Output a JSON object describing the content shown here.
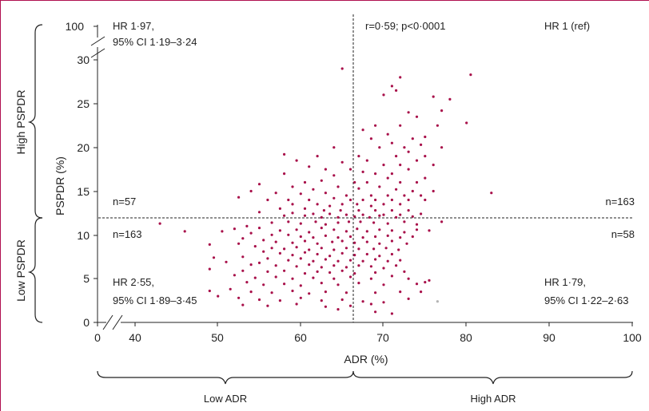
{
  "chart_data": {
    "type": "scatter",
    "xlabel": "ADR (%)",
    "ylabel": "PSPDR (%)",
    "x_ticks": [
      "0",
      "40",
      "50",
      "60",
      "70",
      "80",
      "90",
      "100"
    ],
    "y_ticks": [
      "0",
      "5",
      "10",
      "15",
      "20",
      "25",
      "30",
      "100"
    ],
    "xlim": [
      35,
      100
    ],
    "ylim": [
      0,
      32
    ],
    "axis_breaks": {
      "x": "0 to 35",
      "y": "32 to 100"
    },
    "thresholds": {
      "adr": 66.3,
      "pspdr": 11.8
    },
    "grid": false,
    "legend": "none",
    "colors": {
      "points": "#a8104a",
      "outlier_point": "#b4b4b4",
      "frame": "#b01050"
    },
    "annotations": {
      "correlation": "r=0·59; p<0·0001",
      "top_left_hr": "HR 1·97,",
      "top_left_ci": "95% CI 1·19–3·24",
      "top_right_hr": "HR 1 (ref)",
      "bottom_left_hr": "HR 2·55,",
      "bottom_left_ci": "95% CI 1·89–3·45",
      "bottom_right_hr": "HR 1·79,",
      "bottom_right_ci": "95% CI 1·22–2·63",
      "n_top_left": "n=57",
      "n_bottom_left": "n=163",
      "n_top_right": "n=163",
      "n_bottom_right": "n=58"
    },
    "group_labels": {
      "high_pspdr": "High PSPDR",
      "low_pspdr": "Low PSPDR",
      "low_adr": "Low ADR",
      "high_adr": "High ADR"
    },
    "points": [
      [
        65,
        29
      ],
      [
        72,
        28
      ],
      [
        80.5,
        28.3
      ],
      [
        71,
        27
      ],
      [
        71.5,
        26.5
      ],
      [
        70,
        26
      ],
      [
        76,
        25.8
      ],
      [
        78,
        25.5
      ],
      [
        73,
        24
      ],
      [
        77,
        24.2
      ],
      [
        74,
        23.5
      ],
      [
        69,
        22.5
      ],
      [
        72,
        22.5
      ],
      [
        76.5,
        22.5
      ],
      [
        80,
        22.8
      ],
      [
        67.5,
        22
      ],
      [
        70.5,
        21.5
      ],
      [
        73.5,
        21
      ],
      [
        75,
        21.2
      ],
      [
        68.5,
        21
      ],
      [
        71,
        20.5
      ],
      [
        74.5,
        20.3
      ],
      [
        77,
        20
      ],
      [
        64,
        20
      ],
      [
        72.5,
        20
      ],
      [
        69.5,
        20
      ],
      [
        58,
        19.2
      ],
      [
        62,
        19
      ],
      [
        67,
        19
      ],
      [
        71.5,
        19
      ],
      [
        73,
        19.5
      ],
      [
        75,
        19
      ],
      [
        59.5,
        18.5
      ],
      [
        65,
        18.3
      ],
      [
        68,
        18.5
      ],
      [
        70,
        18
      ],
      [
        72,
        18
      ],
      [
        74,
        18.5
      ],
      [
        76,
        18
      ],
      [
        61,
        17.8
      ],
      [
        63,
        17.5
      ],
      [
        66,
        17.5
      ],
      [
        67.5,
        17.2
      ],
      [
        69,
        17
      ],
      [
        71,
        17
      ],
      [
        73,
        17.5
      ],
      [
        58,
        17
      ],
      [
        64,
        16.8
      ],
      [
        70.5,
        16.5
      ],
      [
        75,
        16.5
      ],
      [
        60.5,
        16
      ],
      [
        62.5,
        16.2
      ],
      [
        66.5,
        16
      ],
      [
        68,
        16
      ],
      [
        72,
        16
      ],
      [
        74,
        16
      ],
      [
        55,
        15.8
      ],
      [
        59,
        15.5
      ],
      [
        61.5,
        15.2
      ],
      [
        64.5,
        15.5
      ],
      [
        67,
        15.3
      ],
      [
        69.5,
        15.5
      ],
      [
        71.5,
        15.2
      ],
      [
        73.5,
        15
      ],
      [
        76,
        15
      ],
      [
        83,
        14.8
      ],
      [
        54,
        15
      ],
      [
        57,
        14.8
      ],
      [
        60,
        14.7
      ],
      [
        63,
        14.8
      ],
      [
        65.5,
        14.5
      ],
      [
        68.5,
        14.5
      ],
      [
        70.5,
        14.5
      ],
      [
        72.5,
        14.5
      ],
      [
        74.5,
        14.5
      ],
      [
        52.5,
        14.3
      ],
      [
        56,
        14
      ],
      [
        58.5,
        14
      ],
      [
        61,
        14
      ],
      [
        64,
        14.2
      ],
      [
        66,
        14
      ],
      [
        67.5,
        14
      ],
      [
        69,
        14
      ],
      [
        71,
        14
      ],
      [
        73,
        14
      ],
      [
        75,
        14
      ],
      [
        59,
        13.5
      ],
      [
        62,
        13.5
      ],
      [
        63.5,
        13.3
      ],
      [
        65,
        13.5
      ],
      [
        66.8,
        13.5
      ],
      [
        68.5,
        13.3
      ],
      [
        70,
        13.5
      ],
      [
        72,
        13.5
      ],
      [
        57.5,
        13
      ],
      [
        60.5,
        13
      ],
      [
        62.8,
        12.8
      ],
      [
        64.8,
        12.8
      ],
      [
        67,
        12.8
      ],
      [
        69,
        12.8
      ],
      [
        71,
        12.8
      ],
      [
        73,
        12.8
      ],
      [
        55,
        12.6
      ],
      [
        59,
        12.5
      ],
      [
        61.5,
        12.4
      ],
      [
        63.5,
        12.4
      ],
      [
        65.5,
        12.3
      ],
      [
        67.5,
        12.3
      ],
      [
        70,
        12.3
      ],
      [
        72,
        12.3
      ],
      [
        74.5,
        12.4
      ],
      [
        58,
        12.2
      ],
      [
        60.5,
        12.2
      ],
      [
        62.5,
        12
      ],
      [
        64.5,
        12
      ],
      [
        66.5,
        12.1
      ],
      [
        68.3,
        12
      ],
      [
        69.5,
        12.2
      ],
      [
        71.5,
        12
      ],
      [
        73.5,
        12.1
      ],
      [
        43,
        11.3
      ],
      [
        46,
        10.4
      ],
      [
        53.5,
        11
      ],
      [
        56.5,
        11.4
      ],
      [
        58.5,
        11.5
      ],
      [
        60,
        11.3
      ],
      [
        61.8,
        11.5
      ],
      [
        63,
        11.2
      ],
      [
        64.5,
        11.4
      ],
      [
        65.8,
        11.5
      ],
      [
        67.2,
        11.5
      ],
      [
        68.8,
        11.4
      ],
      [
        70.5,
        11.3
      ],
      [
        72.5,
        11.5
      ],
      [
        74,
        11.2
      ],
      [
        77,
        11.5
      ],
      [
        52,
        10.7
      ],
      [
        55,
        10.8
      ],
      [
        57.5,
        10.5
      ],
      [
        59.5,
        10.6
      ],
      [
        61,
        10.3
      ],
      [
        62.5,
        10.8
      ],
      [
        64,
        10.6
      ],
      [
        65.5,
        10.4
      ],
      [
        66.8,
        10.7
      ],
      [
        68,
        10.4
      ],
      [
        69.5,
        10.6
      ],
      [
        71,
        10.5
      ],
      [
        72.5,
        10.3
      ],
      [
        74,
        10.6
      ],
      [
        75.5,
        10.5
      ],
      [
        50.5,
        10.4
      ],
      [
        54,
        10.2
      ],
      [
        56.5,
        10
      ],
      [
        58.5,
        10
      ],
      [
        60,
        9.8
      ],
      [
        61.5,
        9.7
      ],
      [
        63,
        9.9
      ],
      [
        64.5,
        9.7
      ],
      [
        66,
        9.8
      ],
      [
        67.5,
        9.7
      ],
      [
        69,
        9.8
      ],
      [
        70.5,
        9.9
      ],
      [
        72,
        9.7
      ],
      [
        73.5,
        9.8
      ],
      [
        53,
        9.6
      ],
      [
        55.5,
        9.4
      ],
      [
        57,
        9.2
      ],
      [
        59,
        9.1
      ],
      [
        60.5,
        9.3
      ],
      [
        62,
        9
      ],
      [
        63.8,
        9.2
      ],
      [
        65,
        9.3
      ],
      [
        66.5,
        9.1
      ],
      [
        68,
        9.2
      ],
      [
        69.5,
        9
      ],
      [
        71,
        9.3
      ],
      [
        72.8,
        9
      ],
      [
        49,
        8.9
      ],
      [
        52.5,
        9
      ],
      [
        54.5,
        8.7
      ],
      [
        56.5,
        8.5
      ],
      [
        58,
        8.4
      ],
      [
        59.5,
        8.6
      ],
      [
        61,
        8.3
      ],
      [
        62.5,
        8.5
      ],
      [
        64,
        8.3
      ],
      [
        65.5,
        8.5
      ],
      [
        67,
        8.4
      ],
      [
        68.8,
        8.4
      ],
      [
        70.3,
        8.5
      ],
      [
        71.8,
        8.3
      ],
      [
        55.5,
        8.1
      ],
      [
        57.5,
        7.9
      ],
      [
        59,
        7.7
      ],
      [
        60.5,
        8
      ],
      [
        62,
        7.8
      ],
      [
        63.5,
        7.6
      ],
      [
        65,
        7.9
      ],
      [
        66.5,
        7.7
      ],
      [
        68,
        7.8
      ],
      [
        69.5,
        7.6
      ],
      [
        71,
        7.8
      ],
      [
        49.5,
        7.4
      ],
      [
        53,
        7.5
      ],
      [
        56,
        7.3
      ],
      [
        58.5,
        7.1
      ],
      [
        60,
        7.3
      ],
      [
        61.5,
        7
      ],
      [
        63,
        7.2
      ],
      [
        64.5,
        7
      ],
      [
        66,
        7.1
      ],
      [
        67.5,
        7
      ],
      [
        69,
        7.2
      ],
      [
        70.5,
        7
      ],
      [
        72,
        7.1
      ],
      [
        51,
        6.9
      ],
      [
        54,
        6.6
      ],
      [
        55,
        6.8
      ],
      [
        57,
        6.5
      ],
      [
        59.5,
        6.4
      ],
      [
        61,
        6.6
      ],
      [
        62.5,
        6.3
      ],
      [
        64,
        6.5
      ],
      [
        65.5,
        6.3
      ],
      [
        67,
        6.5
      ],
      [
        68.5,
        6.4
      ],
      [
        70,
        6.2
      ],
      [
        71.5,
        6.5
      ],
      [
        49,
        6.1
      ],
      [
        53,
        5.9
      ],
      [
        56,
        5.8
      ],
      [
        58,
        5.9
      ],
      [
        60.5,
        5.6
      ],
      [
        62,
        5.8
      ],
      [
        63.5,
        5.7
      ],
      [
        65,
        5.9
      ],
      [
        66.5,
        5.6
      ],
      [
        69,
        5.7
      ],
      [
        72.5,
        5.8
      ],
      [
        52,
        5.4
      ],
      [
        54.5,
        5.1
      ],
      [
        57,
        5.2
      ],
      [
        59,
        5
      ],
      [
        61.5,
        5.1
      ],
      [
        64,
        5
      ],
      [
        66,
        5.2
      ],
      [
        68.5,
        5
      ],
      [
        71,
        5.3
      ],
      [
        73,
        5
      ],
      [
        75.5,
        4.8
      ],
      [
        53.5,
        4.6
      ],
      [
        55.5,
        4.3
      ],
      [
        58,
        4.4
      ],
      [
        60,
        4.2
      ],
      [
        62.5,
        4.5
      ],
      [
        64.5,
        4.3
      ],
      [
        67,
        4.5
      ],
      [
        70,
        4.3
      ],
      [
        74,
        4.4
      ],
      [
        75,
        4.6
      ],
      [
        49,
        3.6
      ],
      [
        51.5,
        3.8
      ],
      [
        54,
        3.5
      ],
      [
        56.5,
        3.4
      ],
      [
        59,
        3.6
      ],
      [
        61,
        3.3
      ],
      [
        63,
        3.5
      ],
      [
        65.5,
        3.4
      ],
      [
        69,
        3.4
      ],
      [
        72,
        3.5
      ],
      [
        74.5,
        3.5
      ],
      [
        50,
        3
      ],
      [
        52.5,
        2.8
      ],
      [
        55,
        2.6
      ],
      [
        57.5,
        2.5
      ],
      [
        60,
        2.8
      ],
      [
        62.5,
        2.5
      ],
      [
        65,
        2.6
      ],
      [
        67.5,
        2.4
      ],
      [
        70,
        2.3
      ],
      [
        73,
        2.7
      ],
      [
        53,
        2
      ],
      [
        56,
        1.9
      ],
      [
        59.5,
        2.1
      ],
      [
        63,
        1.8
      ],
      [
        66,
        1.9
      ],
      [
        68.5,
        2.1
      ],
      [
        64.5,
        1.5
      ],
      [
        71,
        1
      ],
      [
        69,
        1.2
      ]
    ],
    "outlier_points": [
      [
        76.5,
        2.4
      ]
    ]
  }
}
